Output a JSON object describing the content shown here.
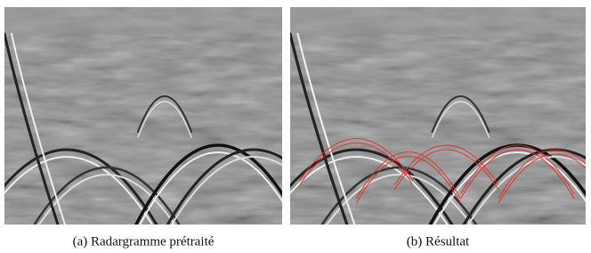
{
  "figure": {
    "panels": [
      {
        "caption": "(a) Radargramme prétraité"
      },
      {
        "caption": "(b) Résultat"
      }
    ]
  }
}
